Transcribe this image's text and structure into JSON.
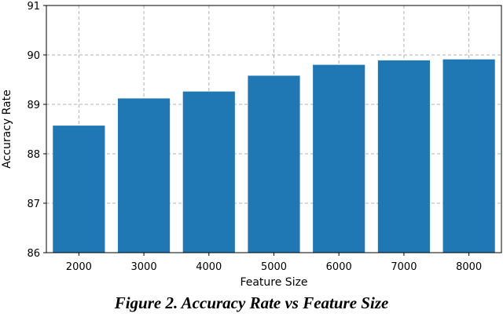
{
  "caption": "Figure 2. Accuracy Rate vs Feature Size",
  "chart_data": {
    "type": "bar",
    "categories": [
      "2000",
      "3000",
      "4000",
      "5000",
      "6000",
      "7000",
      "8000"
    ],
    "values": [
      88.57,
      89.12,
      89.26,
      89.58,
      89.8,
      89.89,
      89.91
    ],
    "title": "",
    "xlabel": "Feature Size",
    "ylabel": "Accuracy Rate",
    "ylim": [
      86,
      91
    ],
    "yticks": [
      86,
      87,
      88,
      89,
      90,
      91
    ],
    "grid": true,
    "bar_color": "#1f77b4",
    "grid_color": "#b0b0b0"
  }
}
